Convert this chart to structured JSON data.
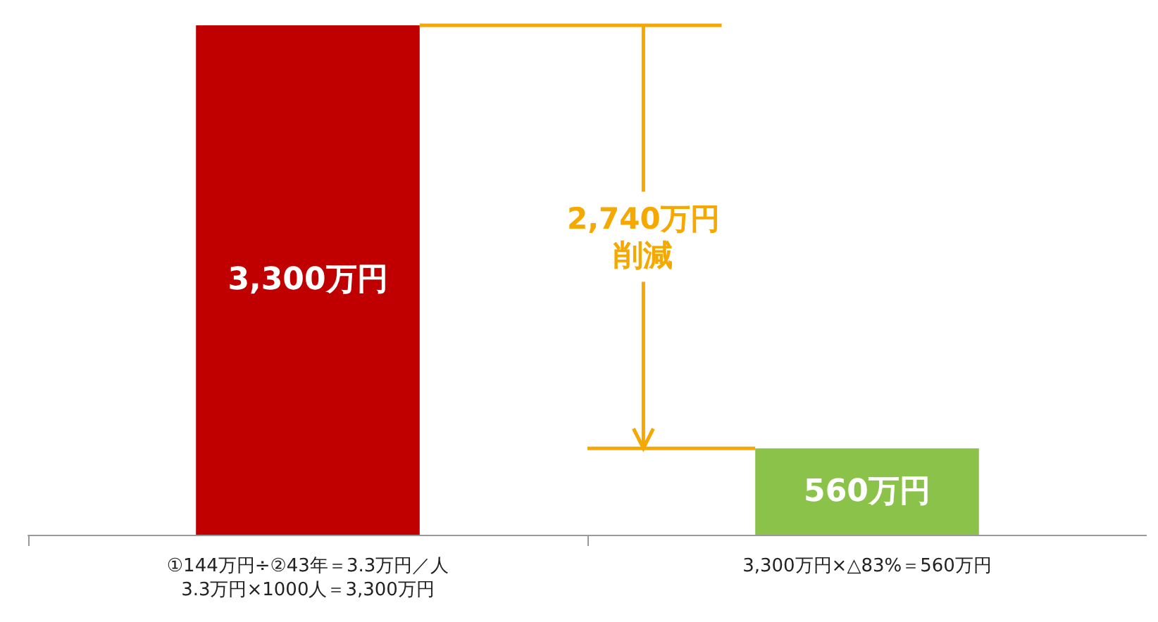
{
  "chart_data": {
    "type": "bar",
    "categories": [
      "①144万円÷②43年＝3.3万円／人\n3.3万円×1000人＝3,300万円",
      "3,300万円×△83%＝560万円"
    ],
    "values": [
      3300,
      560
    ],
    "colors": [
      "#c00000",
      "#8bc34a"
    ],
    "value_labels": [
      "3,300万円",
      "560万円"
    ],
    "annotations": [
      "2,740万円",
      "削減"
    ],
    "tick_labels": "x"
  }
}
